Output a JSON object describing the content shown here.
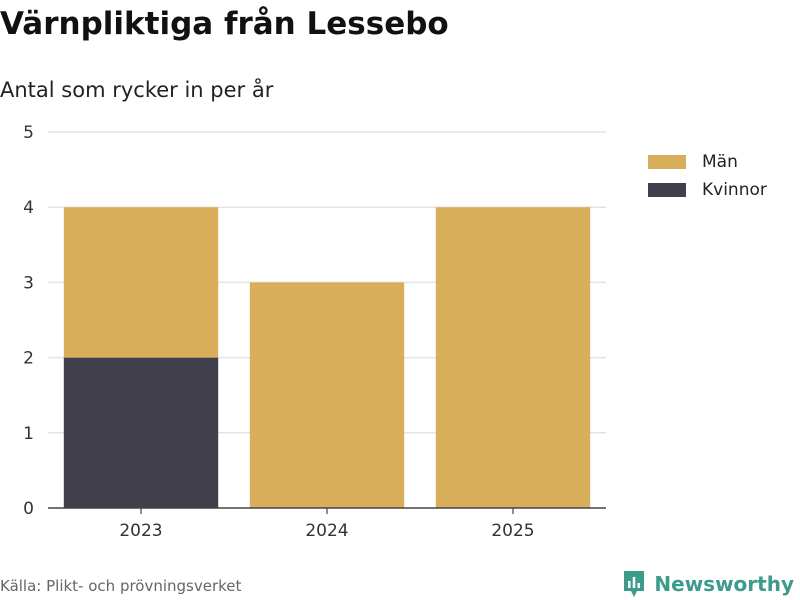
{
  "title": "Värnpliktiga från Lessebo",
  "subtitle": "Antal som rycker in per år",
  "source": "Källa: Plikt- och prövningsverket",
  "brand": {
    "name": "Newsworthy",
    "icon": "newsworthy-logo-icon",
    "color": "#3d9b8c"
  },
  "chart_data": {
    "type": "bar",
    "stacked": true,
    "categories": [
      "2023",
      "2024",
      "2025"
    ],
    "series": [
      {
        "name": "Kvinnor",
        "values": [
          2,
          0,
          0
        ],
        "color": "#413f4c"
      },
      {
        "name": "Män",
        "values": [
          2,
          3,
          4
        ],
        "color": "#d9ae5a"
      }
    ],
    "legend": [
      {
        "name": "Män",
        "color": "#d9ae5a"
      },
      {
        "name": "Kvinnor",
        "color": "#413f4c"
      }
    ],
    "yticks": [
      "0",
      "1",
      "2",
      "3",
      "4",
      "5"
    ],
    "ylim": [
      0,
      5
    ],
    "xlabel": "",
    "ylabel": "",
    "grid": true,
    "legend_position": "top-right"
  }
}
